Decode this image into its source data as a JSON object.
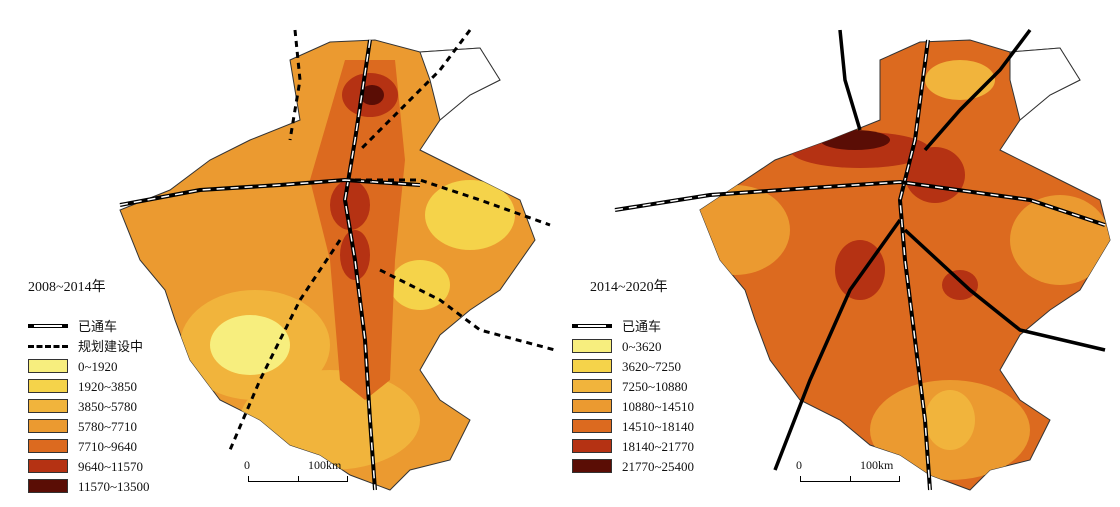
{
  "panels": [
    {
      "period": "2008~2014年",
      "legend_lines": [
        {
          "label": "已通车",
          "kind": "rail"
        },
        {
          "label": "规划建设中",
          "kind": "planned"
        }
      ],
      "classes": [
        {
          "label": "0~1920",
          "color": "#f7ee7e"
        },
        {
          "label": "1920~3850",
          "color": "#f5d34a"
        },
        {
          "label": "3850~5780",
          "color": "#f1b43c"
        },
        {
          "label": "5780~7710",
          "color": "#eb9a30"
        },
        {
          "label": "7710~9640",
          "color": "#dc6a1f"
        },
        {
          "label": "9640~11570",
          "color": "#b53213"
        },
        {
          "label": "11570~13500",
          "color": "#5a0d05"
        }
      ],
      "scale": {
        "zero": "0",
        "max": "100km"
      }
    },
    {
      "period": "2014~2020年",
      "legend_lines": [
        {
          "label": "已通车",
          "kind": "rail"
        }
      ],
      "classes": [
        {
          "label": "0~3620",
          "color": "#f7ee7e"
        },
        {
          "label": "3620~7250",
          "color": "#f5d34a"
        },
        {
          "label": "7250~10880",
          "color": "#f1b43c"
        },
        {
          "label": "10880~14510",
          "color": "#eb9a30"
        },
        {
          "label": "14510~18140",
          "color": "#dc6a1f"
        },
        {
          "label": "18140~21770",
          "color": "#b53213"
        },
        {
          "label": "21770~25400",
          "color": "#5a0d05"
        }
      ],
      "scale": {
        "zero": "0",
        "max": "100km"
      }
    }
  ]
}
